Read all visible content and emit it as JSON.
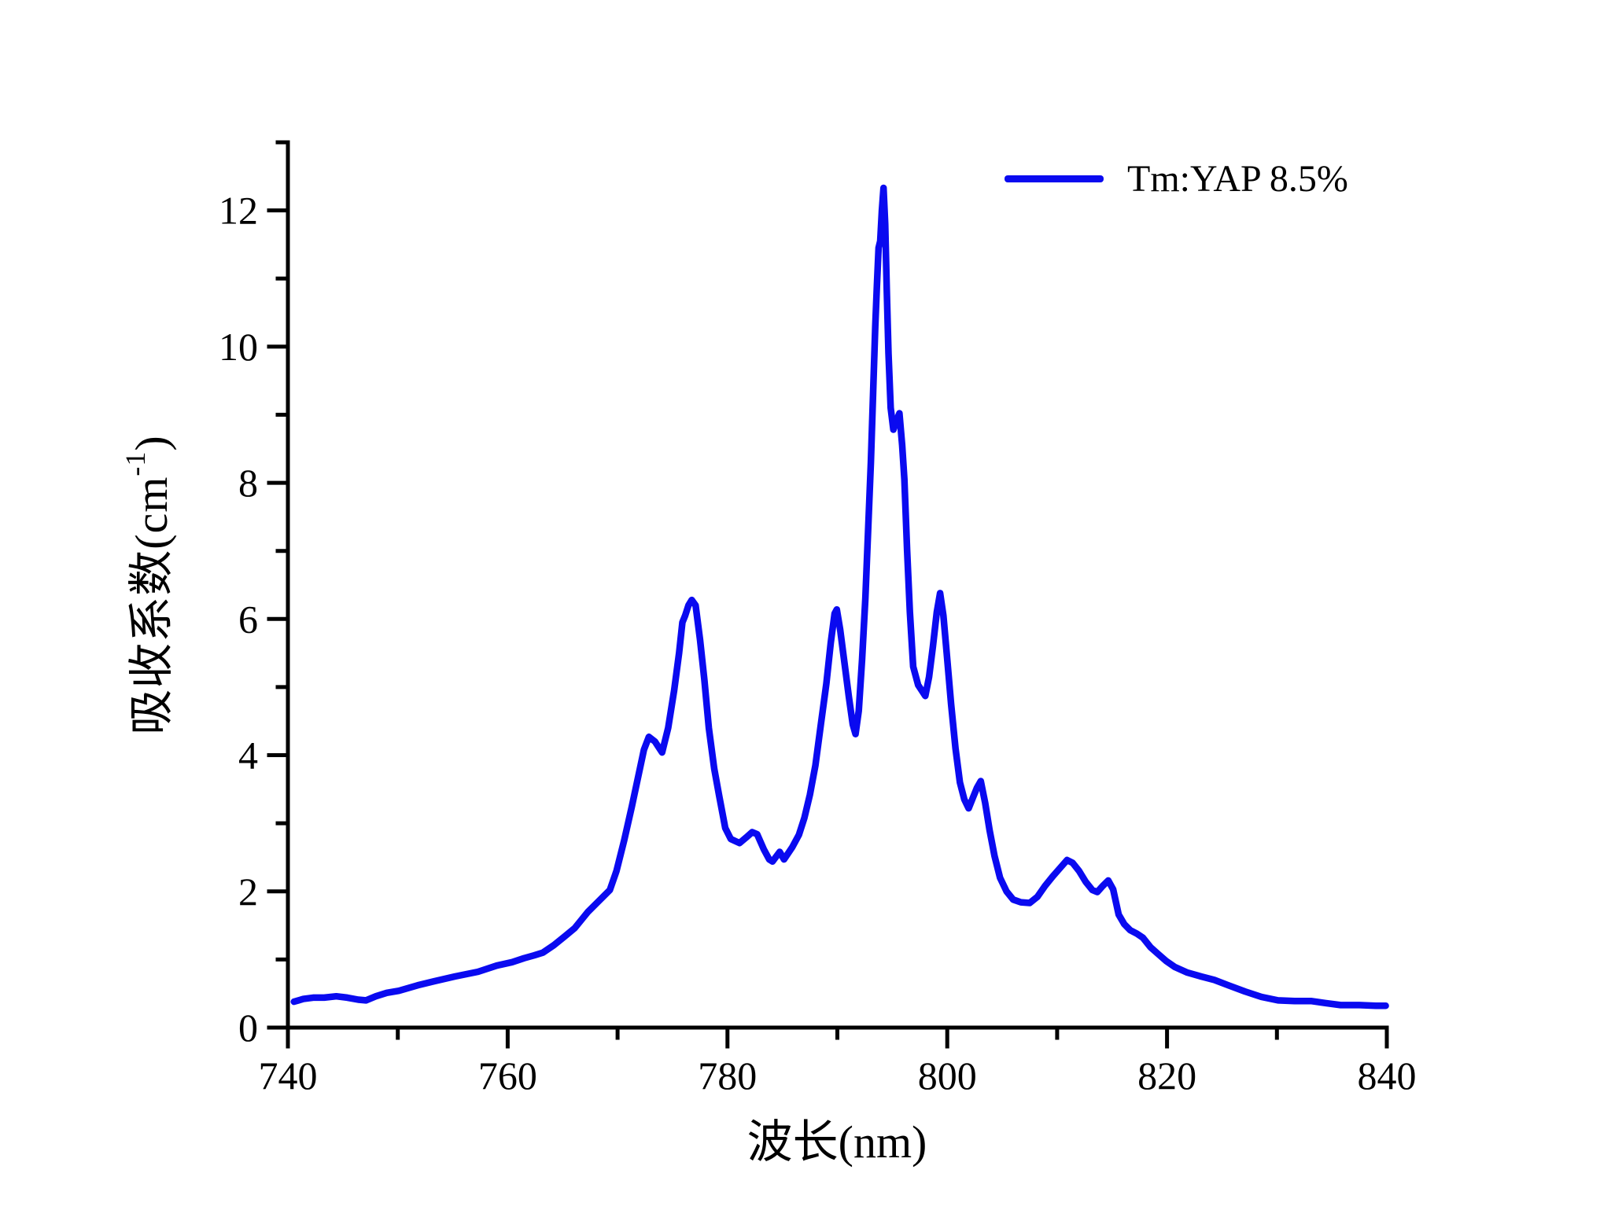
{
  "figure": {
    "background": "#ffffff",
    "axis_color": "#000000",
    "accent_blue": "#0a0af0"
  },
  "legend": {
    "series_label": "Tm:YAP 8.5%",
    "line_color": "#0a0af0"
  },
  "chart_data": {
    "type": "line",
    "title": "",
    "xlabel": "波长(nm)",
    "ylabel": "吸收系数(cm⁻¹)",
    "ylabel_prefix": "吸收系数(cm",
    "ylabel_sup": "-1",
    "ylabel_suffix": ")",
    "xlim": [
      740,
      840
    ],
    "ylim": [
      0,
      13
    ],
    "x_major_ticks": [
      740,
      760,
      780,
      800,
      820,
      840
    ],
    "x_minor_ticks": [
      750,
      770,
      790,
      810,
      830
    ],
    "y_major_ticks": [
      0,
      2,
      4,
      6,
      8,
      10,
      12
    ],
    "y_minor_ticks": [
      1,
      3,
      5,
      7,
      9,
      11,
      13
    ],
    "grid": false,
    "legend_position": "top-right",
    "series": [
      {
        "name": "Tm:YAP 8.5%",
        "color": "#0a0af0",
        "points": [
          [
            740.55,
            0.38
          ],
          [
            741.4,
            0.42
          ],
          [
            742.3,
            0.44
          ],
          [
            743.3,
            0.44
          ],
          [
            744.4,
            0.46
          ],
          [
            745.4,
            0.44
          ],
          [
            746.4,
            0.41
          ],
          [
            747.1,
            0.4
          ],
          [
            748.0,
            0.46
          ],
          [
            749.0,
            0.51
          ],
          [
            750.1,
            0.54
          ],
          [
            751.8,
            0.62
          ],
          [
            753.3,
            0.68
          ],
          [
            755.2,
            0.75
          ],
          [
            757.3,
            0.82
          ],
          [
            759.0,
            0.91
          ],
          [
            760.4,
            0.96
          ],
          [
            761.5,
            1.02
          ],
          [
            762.4,
            1.06
          ],
          [
            763.2,
            1.1
          ],
          [
            764.2,
            1.21
          ],
          [
            765.2,
            1.34
          ],
          [
            766.1,
            1.46
          ],
          [
            767.3,
            1.7
          ],
          [
            768.3,
            1.86
          ],
          [
            769.3,
            2.02
          ],
          [
            769.9,
            2.3
          ],
          [
            770.6,
            2.75
          ],
          [
            771.3,
            3.25
          ],
          [
            771.9,
            3.7
          ],
          [
            772.4,
            4.08
          ],
          [
            772.85,
            4.27
          ],
          [
            773.4,
            4.2
          ],
          [
            774.05,
            4.04
          ],
          [
            774.6,
            4.4
          ],
          [
            775.15,
            4.95
          ],
          [
            775.6,
            5.5
          ],
          [
            775.9,
            5.95
          ],
          [
            776.15,
            6.05
          ],
          [
            776.45,
            6.2
          ],
          [
            776.75,
            6.28
          ],
          [
            777.1,
            6.2
          ],
          [
            777.5,
            5.7
          ],
          [
            777.9,
            5.1
          ],
          [
            778.3,
            4.4
          ],
          [
            778.8,
            3.8
          ],
          [
            779.25,
            3.4
          ],
          [
            779.8,
            2.93
          ],
          [
            780.3,
            2.77
          ],
          [
            781.1,
            2.71
          ],
          [
            781.7,
            2.79
          ],
          [
            782.25,
            2.87
          ],
          [
            782.7,
            2.84
          ],
          [
            783.3,
            2.62
          ],
          [
            783.8,
            2.47
          ],
          [
            784.1,
            2.44
          ],
          [
            784.75,
            2.58
          ],
          [
            785.15,
            2.47
          ],
          [
            785.9,
            2.65
          ],
          [
            786.5,
            2.83
          ],
          [
            787.0,
            3.08
          ],
          [
            787.5,
            3.42
          ],
          [
            788.0,
            3.85
          ],
          [
            788.5,
            4.45
          ],
          [
            789.0,
            5.05
          ],
          [
            789.4,
            5.65
          ],
          [
            789.75,
            6.08
          ],
          [
            789.95,
            6.14
          ],
          [
            790.25,
            5.85
          ],
          [
            790.65,
            5.35
          ],
          [
            791.05,
            4.85
          ],
          [
            791.4,
            4.45
          ],
          [
            791.65,
            4.31
          ],
          [
            791.95,
            4.65
          ],
          [
            792.25,
            5.4
          ],
          [
            792.55,
            6.3
          ],
          [
            792.8,
            7.3
          ],
          [
            793.05,
            8.3
          ],
          [
            793.25,
            9.3
          ],
          [
            793.45,
            10.3
          ],
          [
            793.6,
            10.9
          ],
          [
            793.75,
            11.45
          ],
          [
            793.9,
            11.55
          ],
          [
            794.05,
            12.0
          ],
          [
            794.2,
            12.33
          ],
          [
            794.35,
            11.8
          ],
          [
            794.5,
            10.8
          ],
          [
            794.65,
            9.9
          ],
          [
            794.85,
            9.1
          ],
          [
            795.1,
            8.78
          ],
          [
            795.35,
            8.9
          ],
          [
            795.65,
            9.02
          ],
          [
            795.9,
            8.55
          ],
          [
            796.1,
            8.05
          ],
          [
            796.35,
            7.0
          ],
          [
            796.6,
            6.1
          ],
          [
            796.9,
            5.3
          ],
          [
            797.35,
            5.03
          ],
          [
            798.0,
            4.87
          ],
          [
            798.35,
            5.15
          ],
          [
            798.7,
            5.6
          ],
          [
            799.05,
            6.1
          ],
          [
            799.35,
            6.38
          ],
          [
            799.65,
            6.05
          ],
          [
            799.95,
            5.5
          ],
          [
            800.35,
            4.75
          ],
          [
            800.75,
            4.1
          ],
          [
            801.15,
            3.6
          ],
          [
            801.55,
            3.35
          ],
          [
            801.95,
            3.22
          ],
          [
            802.35,
            3.38
          ],
          [
            802.7,
            3.52
          ],
          [
            803.05,
            3.62
          ],
          [
            803.45,
            3.3
          ],
          [
            803.85,
            2.9
          ],
          [
            804.3,
            2.52
          ],
          [
            804.8,
            2.2
          ],
          [
            805.4,
            2.0
          ],
          [
            806.0,
            1.88
          ],
          [
            806.7,
            1.84
          ],
          [
            807.5,
            1.83
          ],
          [
            808.2,
            1.92
          ],
          [
            808.9,
            2.08
          ],
          [
            809.6,
            2.22
          ],
          [
            810.3,
            2.35
          ],
          [
            810.9,
            2.46
          ],
          [
            811.4,
            2.42
          ],
          [
            812.0,
            2.3
          ],
          [
            812.6,
            2.14
          ],
          [
            813.2,
            2.02
          ],
          [
            813.65,
            1.99
          ],
          [
            814.15,
            2.08
          ],
          [
            814.65,
            2.16
          ],
          [
            815.1,
            2.03
          ],
          [
            815.6,
            1.66
          ],
          [
            816.1,
            1.52
          ],
          [
            816.65,
            1.43
          ],
          [
            817.25,
            1.38
          ],
          [
            817.8,
            1.32
          ],
          [
            818.5,
            1.18
          ],
          [
            819.2,
            1.08
          ],
          [
            819.9,
            0.98
          ],
          [
            820.7,
            0.89
          ],
          [
            821.8,
            0.81
          ],
          [
            823.1,
            0.75
          ],
          [
            824.3,
            0.7
          ],
          [
            825.6,
            0.62
          ],
          [
            827.1,
            0.53
          ],
          [
            828.6,
            0.45
          ],
          [
            830.1,
            0.4
          ],
          [
            831.6,
            0.39
          ],
          [
            833.1,
            0.39
          ],
          [
            834.4,
            0.36
          ],
          [
            835.8,
            0.33
          ],
          [
            837.5,
            0.33
          ],
          [
            839.0,
            0.32
          ],
          [
            839.9,
            0.32
          ]
        ]
      }
    ]
  }
}
